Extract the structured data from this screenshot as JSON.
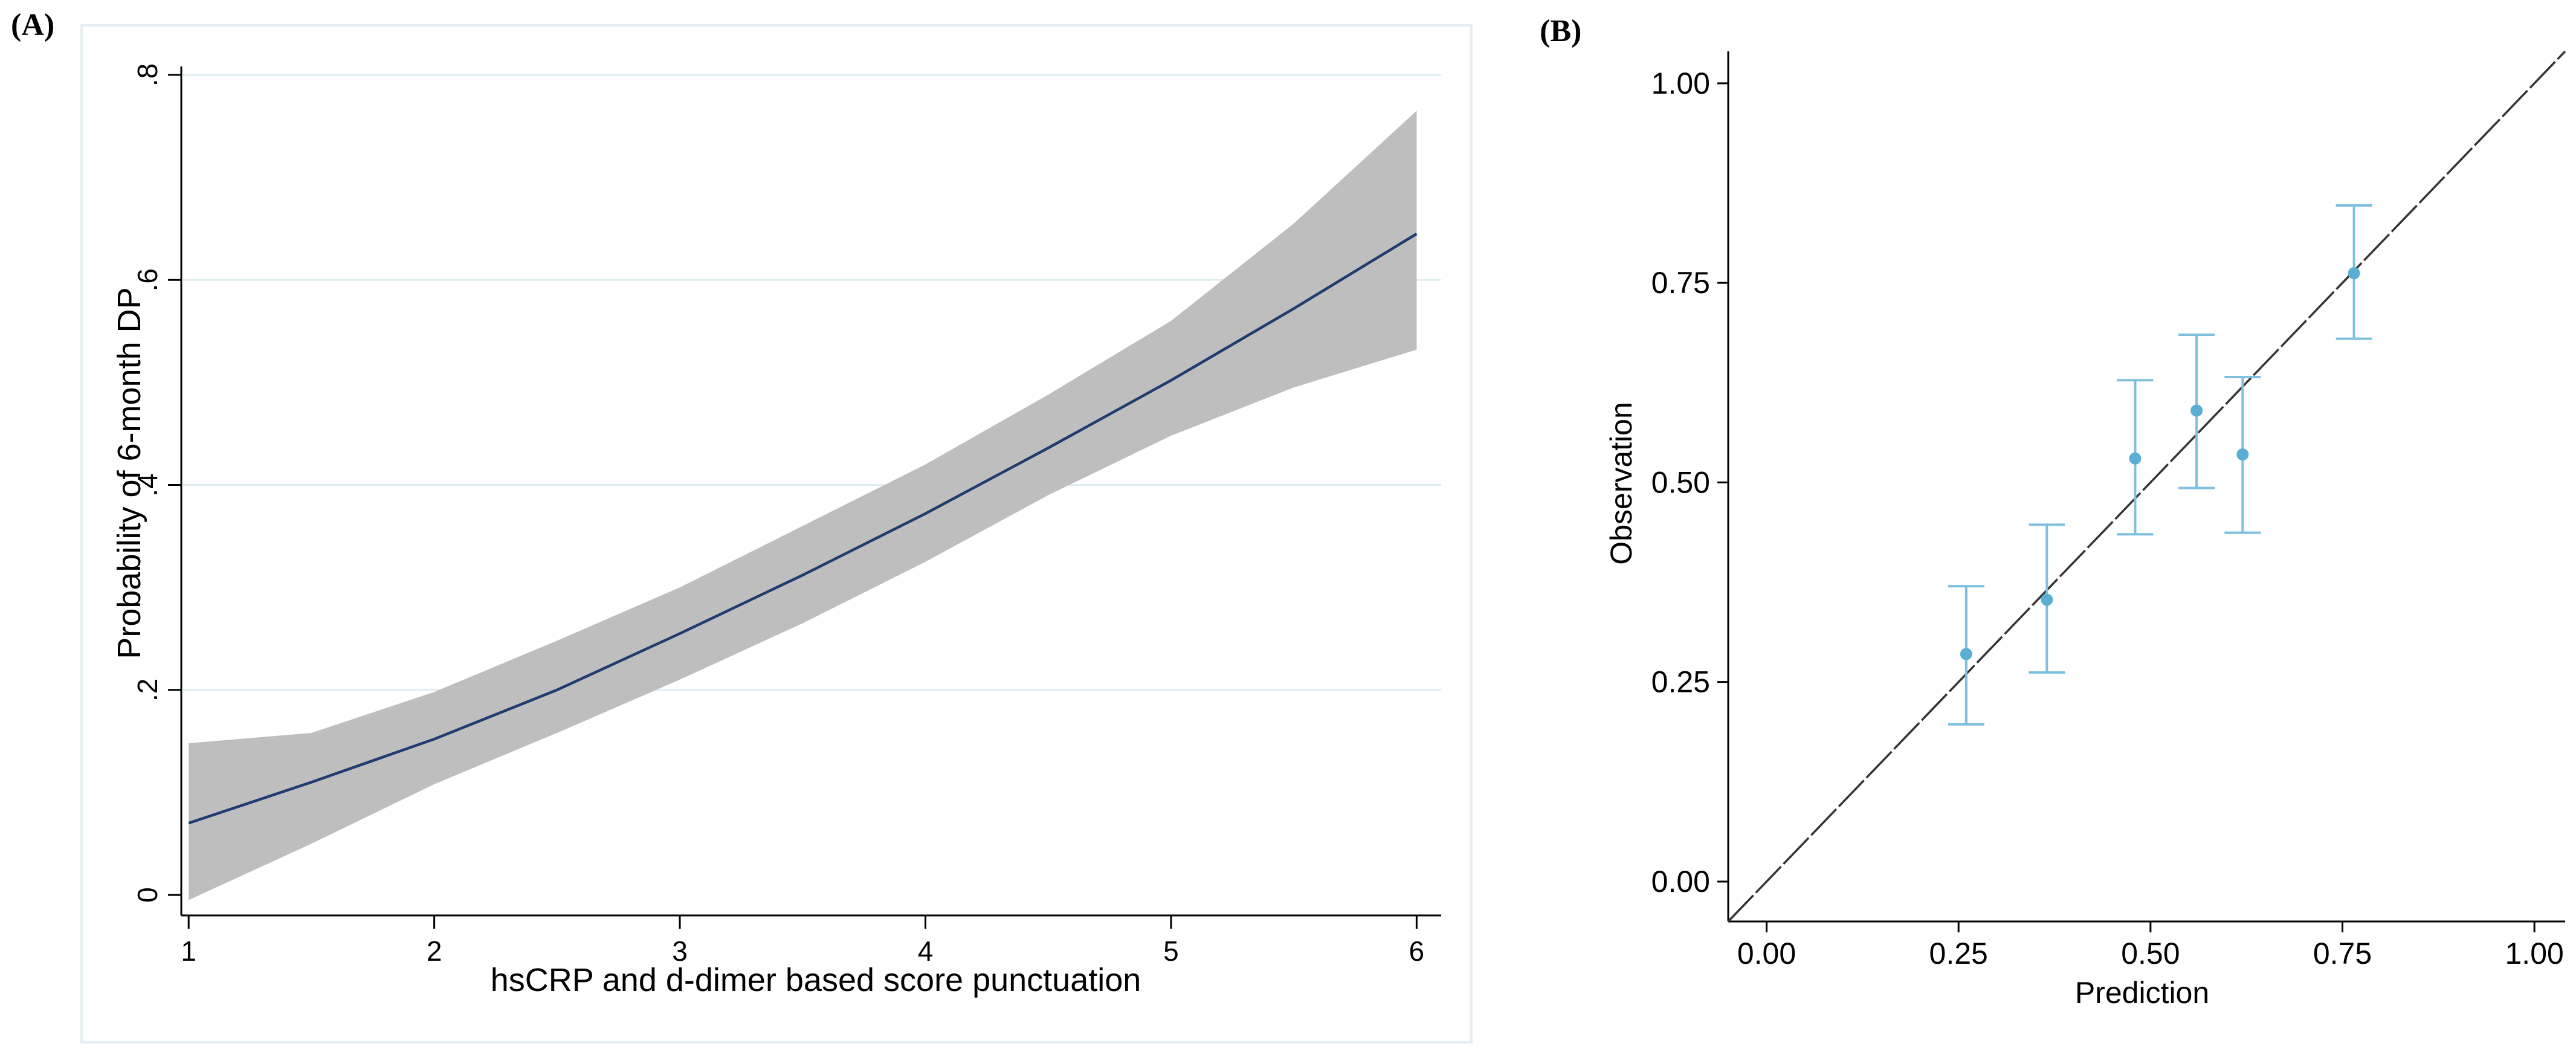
{
  "panel_labels": {
    "a": "(A)",
    "b": "(B)"
  },
  "chart_data": [
    {
      "type": "line",
      "panel": "(A)",
      "xlabel": "hsCRP and d-dimer based score punctuation",
      "ylabel": "Probability of 6-month DP",
      "xlim": [
        0.97,
        6.1
      ],
      "ylim": [
        -0.02,
        0.82
      ],
      "x_ticks": [
        1,
        2,
        3,
        4,
        5,
        6
      ],
      "y_ticks": [
        0,
        0.2,
        0.4,
        0.6,
        0.8
      ],
      "x_tick_labels": [
        "1",
        "2",
        "3",
        "4",
        "5",
        "6"
      ],
      "y_tick_labels": [
        "0",
        ".2",
        ".4",
        ".6",
        ".8"
      ],
      "y_tick_label_rotation": "vertical",
      "grid": true,
      "colors": {
        "line": "#1f3b6f",
        "band": "#bebebe",
        "grid": "#e0eef2",
        "frame": "#e6eef1"
      },
      "series": [
        {
          "x": [
            1,
            1.5,
            2,
            2.5,
            3,
            3.5,
            4,
            4.5,
            5,
            5.5,
            6
          ],
          "values": [
            0.07,
            0.11,
            0.152,
            0.2,
            0.255,
            0.312,
            0.372,
            0.436,
            0.502,
            0.572,
            0.645
          ],
          "lower": [
            -0.005,
            0.05,
            0.108,
            0.158,
            0.21,
            0.265,
            0.325,
            0.39,
            0.448,
            0.495,
            0.532
          ],
          "upper": [
            0.148,
            0.158,
            0.198,
            0.248,
            0.3,
            0.36,
            0.42,
            0.488,
            0.56,
            0.655,
            0.765
          ]
        }
      ]
    },
    {
      "type": "scatter",
      "panel": "(B)",
      "xlabel": "Prediction",
      "ylabel": "Observation",
      "xlim": [
        -0.05,
        1.04
      ],
      "ylim": [
        -0.05,
        1.04
      ],
      "x_ticks": [
        0,
        0.25,
        0.5,
        0.75,
        1
      ],
      "y_ticks": [
        0,
        0.25,
        0.5,
        0.75,
        1
      ],
      "x_tick_labels": [
        "0.00",
        "0.25",
        "0.50",
        "0.75",
        "1.00"
      ],
      "y_tick_labels": [
        "0.00",
        "0.25",
        "0.50",
        "0.75",
        "1.00"
      ],
      "reference_line": "identity (y = x)",
      "grid": false,
      "colors": {
        "points": "#5aaed3",
        "error_bars": "#7fc0de",
        "reference": "#333333"
      },
      "series": [
        {
          "x": [
            0.26,
            0.365,
            0.48,
            0.56,
            0.62,
            0.765
          ],
          "values": [
            0.285,
            0.353,
            0.53,
            0.59,
            0.535,
            0.762
          ],
          "lower": [
            0.197,
            0.262,
            0.435,
            0.493,
            0.437,
            0.68
          ],
          "upper": [
            0.37,
            0.447,
            0.628,
            0.685,
            0.632,
            0.847
          ]
        }
      ]
    }
  ]
}
